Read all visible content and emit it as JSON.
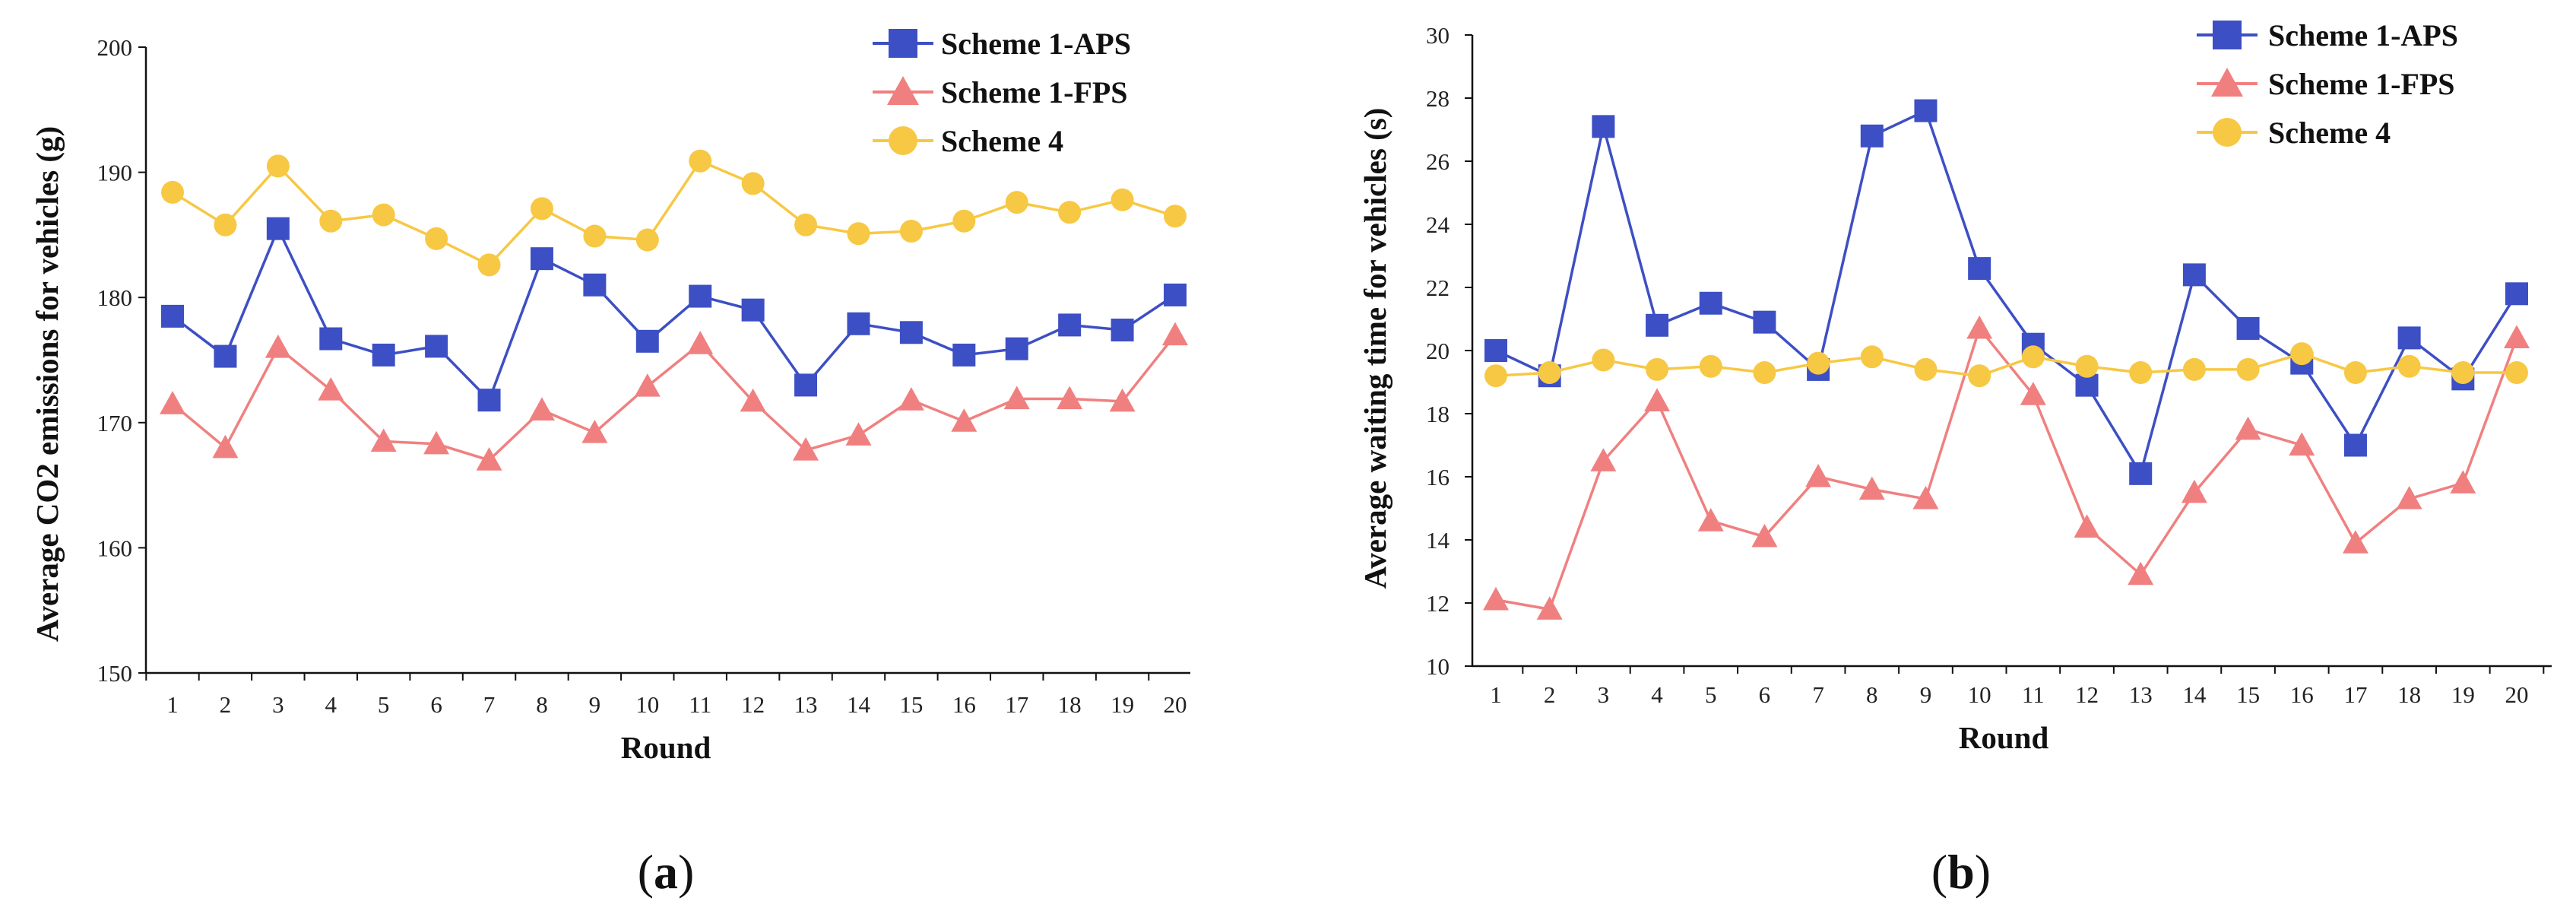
{
  "colors": {
    "aps": "#3D4FC4",
    "fps": "#F08080",
    "s4": "#F7C844",
    "axis": "#111111",
    "tick": "#222222"
  },
  "panels": {
    "a": {
      "label_open": "(",
      "label_letter": "a",
      "label_close": ")"
    },
    "b": {
      "label_open": "(",
      "label_letter": "b",
      "label_close": ")"
    }
  },
  "chart_data": [
    {
      "type": "line",
      "panel": "a",
      "title": "",
      "xlabel": "Round",
      "ylabel": "Average CO2 emissions for vehicles (g)",
      "ylim": [
        150,
        200
      ],
      "yticks": [
        150,
        160,
        170,
        180,
        190,
        200
      ],
      "x": [
        1,
        2,
        3,
        4,
        5,
        6,
        7,
        8,
        9,
        10,
        11,
        12,
        13,
        14,
        15,
        16,
        17,
        18,
        19,
        20
      ],
      "legend_position": "top-right",
      "series": [
        {
          "name": "Scheme 1-APS",
          "marker": "square",
          "color_key": "aps",
          "values": [
            178.5,
            175.3,
            185.5,
            176.7,
            175.4,
            176.1,
            171.8,
            183.1,
            181.0,
            176.5,
            180.1,
            179.0,
            173.0,
            177.9,
            177.2,
            175.4,
            175.9,
            177.8,
            177.4,
            180.2
          ]
        },
        {
          "name": "Scheme 1-FPS",
          "marker": "triangle",
          "color_key": "fps",
          "values": [
            171.5,
            168.0,
            176.0,
            172.6,
            168.5,
            168.3,
            167.0,
            171.0,
            169.2,
            172.9,
            176.3,
            171.7,
            167.8,
            169.0,
            171.8,
            170.1,
            171.9,
            171.9,
            171.7,
            177.0
          ]
        },
        {
          "name": "Scheme 4",
          "marker": "circle",
          "color_key": "s4",
          "values": [
            188.4,
            185.8,
            190.5,
            186.1,
            186.6,
            184.7,
            182.6,
            187.1,
            184.9,
            184.6,
            190.9,
            189.1,
            185.8,
            185.1,
            185.3,
            186.1,
            187.6,
            186.8,
            187.8,
            186.5
          ]
        }
      ]
    },
    {
      "type": "line",
      "panel": "b",
      "title": "",
      "xlabel": "Round",
      "ylabel": "Average waiting time for vehicles (s)",
      "ylim": [
        10,
        30
      ],
      "yticks": [
        10,
        12,
        14,
        16,
        18,
        20,
        22,
        24,
        26,
        28,
        30
      ],
      "x": [
        1,
        2,
        3,
        4,
        5,
        6,
        7,
        8,
        9,
        10,
        11,
        12,
        13,
        14,
        15,
        16,
        17,
        18,
        19,
        20
      ],
      "legend_position": "top-right",
      "series": [
        {
          "name": "Scheme 1-APS",
          "marker": "square",
          "color_key": "aps",
          "values": [
            20.0,
            19.2,
            27.1,
            20.8,
            21.5,
            20.9,
            19.4,
            26.8,
            27.6,
            22.6,
            20.2,
            18.9,
            16.1,
            22.4,
            20.7,
            19.6,
            17.0,
            20.4,
            19.1,
            21.8
          ]
        },
        {
          "name": "Scheme 1-FPS",
          "marker": "triangle",
          "color_key": "fps",
          "values": [
            12.1,
            11.8,
            16.5,
            18.4,
            14.6,
            14.1,
            16.0,
            15.6,
            15.3,
            20.7,
            18.6,
            14.4,
            12.9,
            15.5,
            17.5,
            17.0,
            13.9,
            15.3,
            15.8,
            20.4
          ]
        },
        {
          "name": "Scheme 4",
          "marker": "circle",
          "color_key": "s4",
          "values": [
            19.2,
            19.3,
            19.7,
            19.4,
            19.5,
            19.3,
            19.6,
            19.8,
            19.4,
            19.2,
            19.8,
            19.5,
            19.3,
            19.4,
            19.4,
            19.9,
            19.3,
            19.5,
            19.3,
            19.3
          ]
        }
      ]
    }
  ]
}
